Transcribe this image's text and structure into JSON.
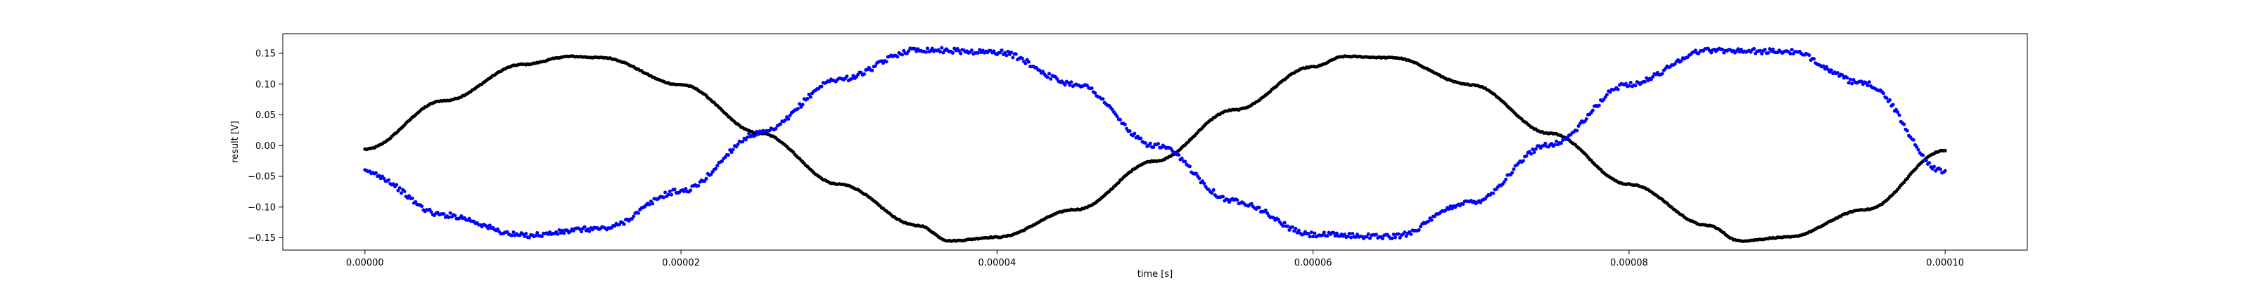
{
  "chart_data": {
    "type": "scatter",
    "title": "",
    "xlabel": "time [s]",
    "ylabel": "result [V]",
    "xlim": [
      -5.2e-06,
      0.0001052
    ],
    "ylim": [
      -0.17,
      0.182
    ],
    "grid": false,
    "legend": "none",
    "xticks": [
      0.0,
      2e-05,
      4e-05,
      6e-05,
      8e-05,
      0.0001
    ],
    "xtick_labels": [
      "0.00000",
      "0.00002",
      "0.00004",
      "0.00006",
      "0.00008",
      "0.00010"
    ],
    "yticks": [
      -0.15,
      -0.1,
      -0.05,
      0.0,
      0.05,
      0.1,
      0.15
    ],
    "ytick_labels": [
      "−0.15",
      "−0.10",
      "−0.05",
      "0.00",
      "0.05",
      "0.10",
      "0.15"
    ],
    "series": [
      {
        "color": "#000000",
        "marker_size": 2.5,
        "x": [
          0.0,
          5e-06,
          1e-05,
          1.3e-05,
          1.5e-05,
          2e-05,
          2.5e-05,
          3e-05,
          3.5e-05,
          3.7e-05,
          4e-05,
          4.5e-05,
          5e-05,
          5.5e-05,
          6e-05,
          6.2e-05,
          6.5e-05,
          7e-05,
          7.5e-05,
          8e-05,
          8.5e-05,
          8.7e-05,
          9e-05,
          9.5e-05,
          0.0001
        ],
        "y": [
          -0.006,
          0.073,
          0.132,
          0.145,
          0.143,
          0.099,
          0.02,
          -0.063,
          -0.13,
          -0.155,
          -0.149,
          -0.104,
          -0.025,
          0.058,
          0.128,
          0.145,
          0.143,
          0.099,
          0.02,
          -0.063,
          -0.13,
          -0.155,
          -0.149,
          -0.104,
          -0.008
        ]
      },
      {
        "color": "#0000ff",
        "marker_size": 2.5,
        "x": [
          0.0,
          5e-06,
          1e-05,
          1.5e-05,
          2e-05,
          2.5e-05,
          3e-05,
          3.5e-05,
          4e-05,
          4.5e-05,
          5e-05,
          5.5e-05,
          6e-05,
          6.5e-05,
          7e-05,
          7.5e-05,
          8e-05,
          8.5e-05,
          9e-05,
          9.5e-05,
          0.0001
        ],
        "y": [
          -0.043,
          -0.113,
          -0.146,
          -0.135,
          -0.074,
          0.02,
          0.108,
          0.156,
          0.152,
          0.1,
          0.0,
          -0.09,
          -0.145,
          -0.148,
          -0.092,
          0.002,
          0.1,
          0.155,
          0.153,
          0.1,
          -0.043
        ]
      }
    ]
  }
}
